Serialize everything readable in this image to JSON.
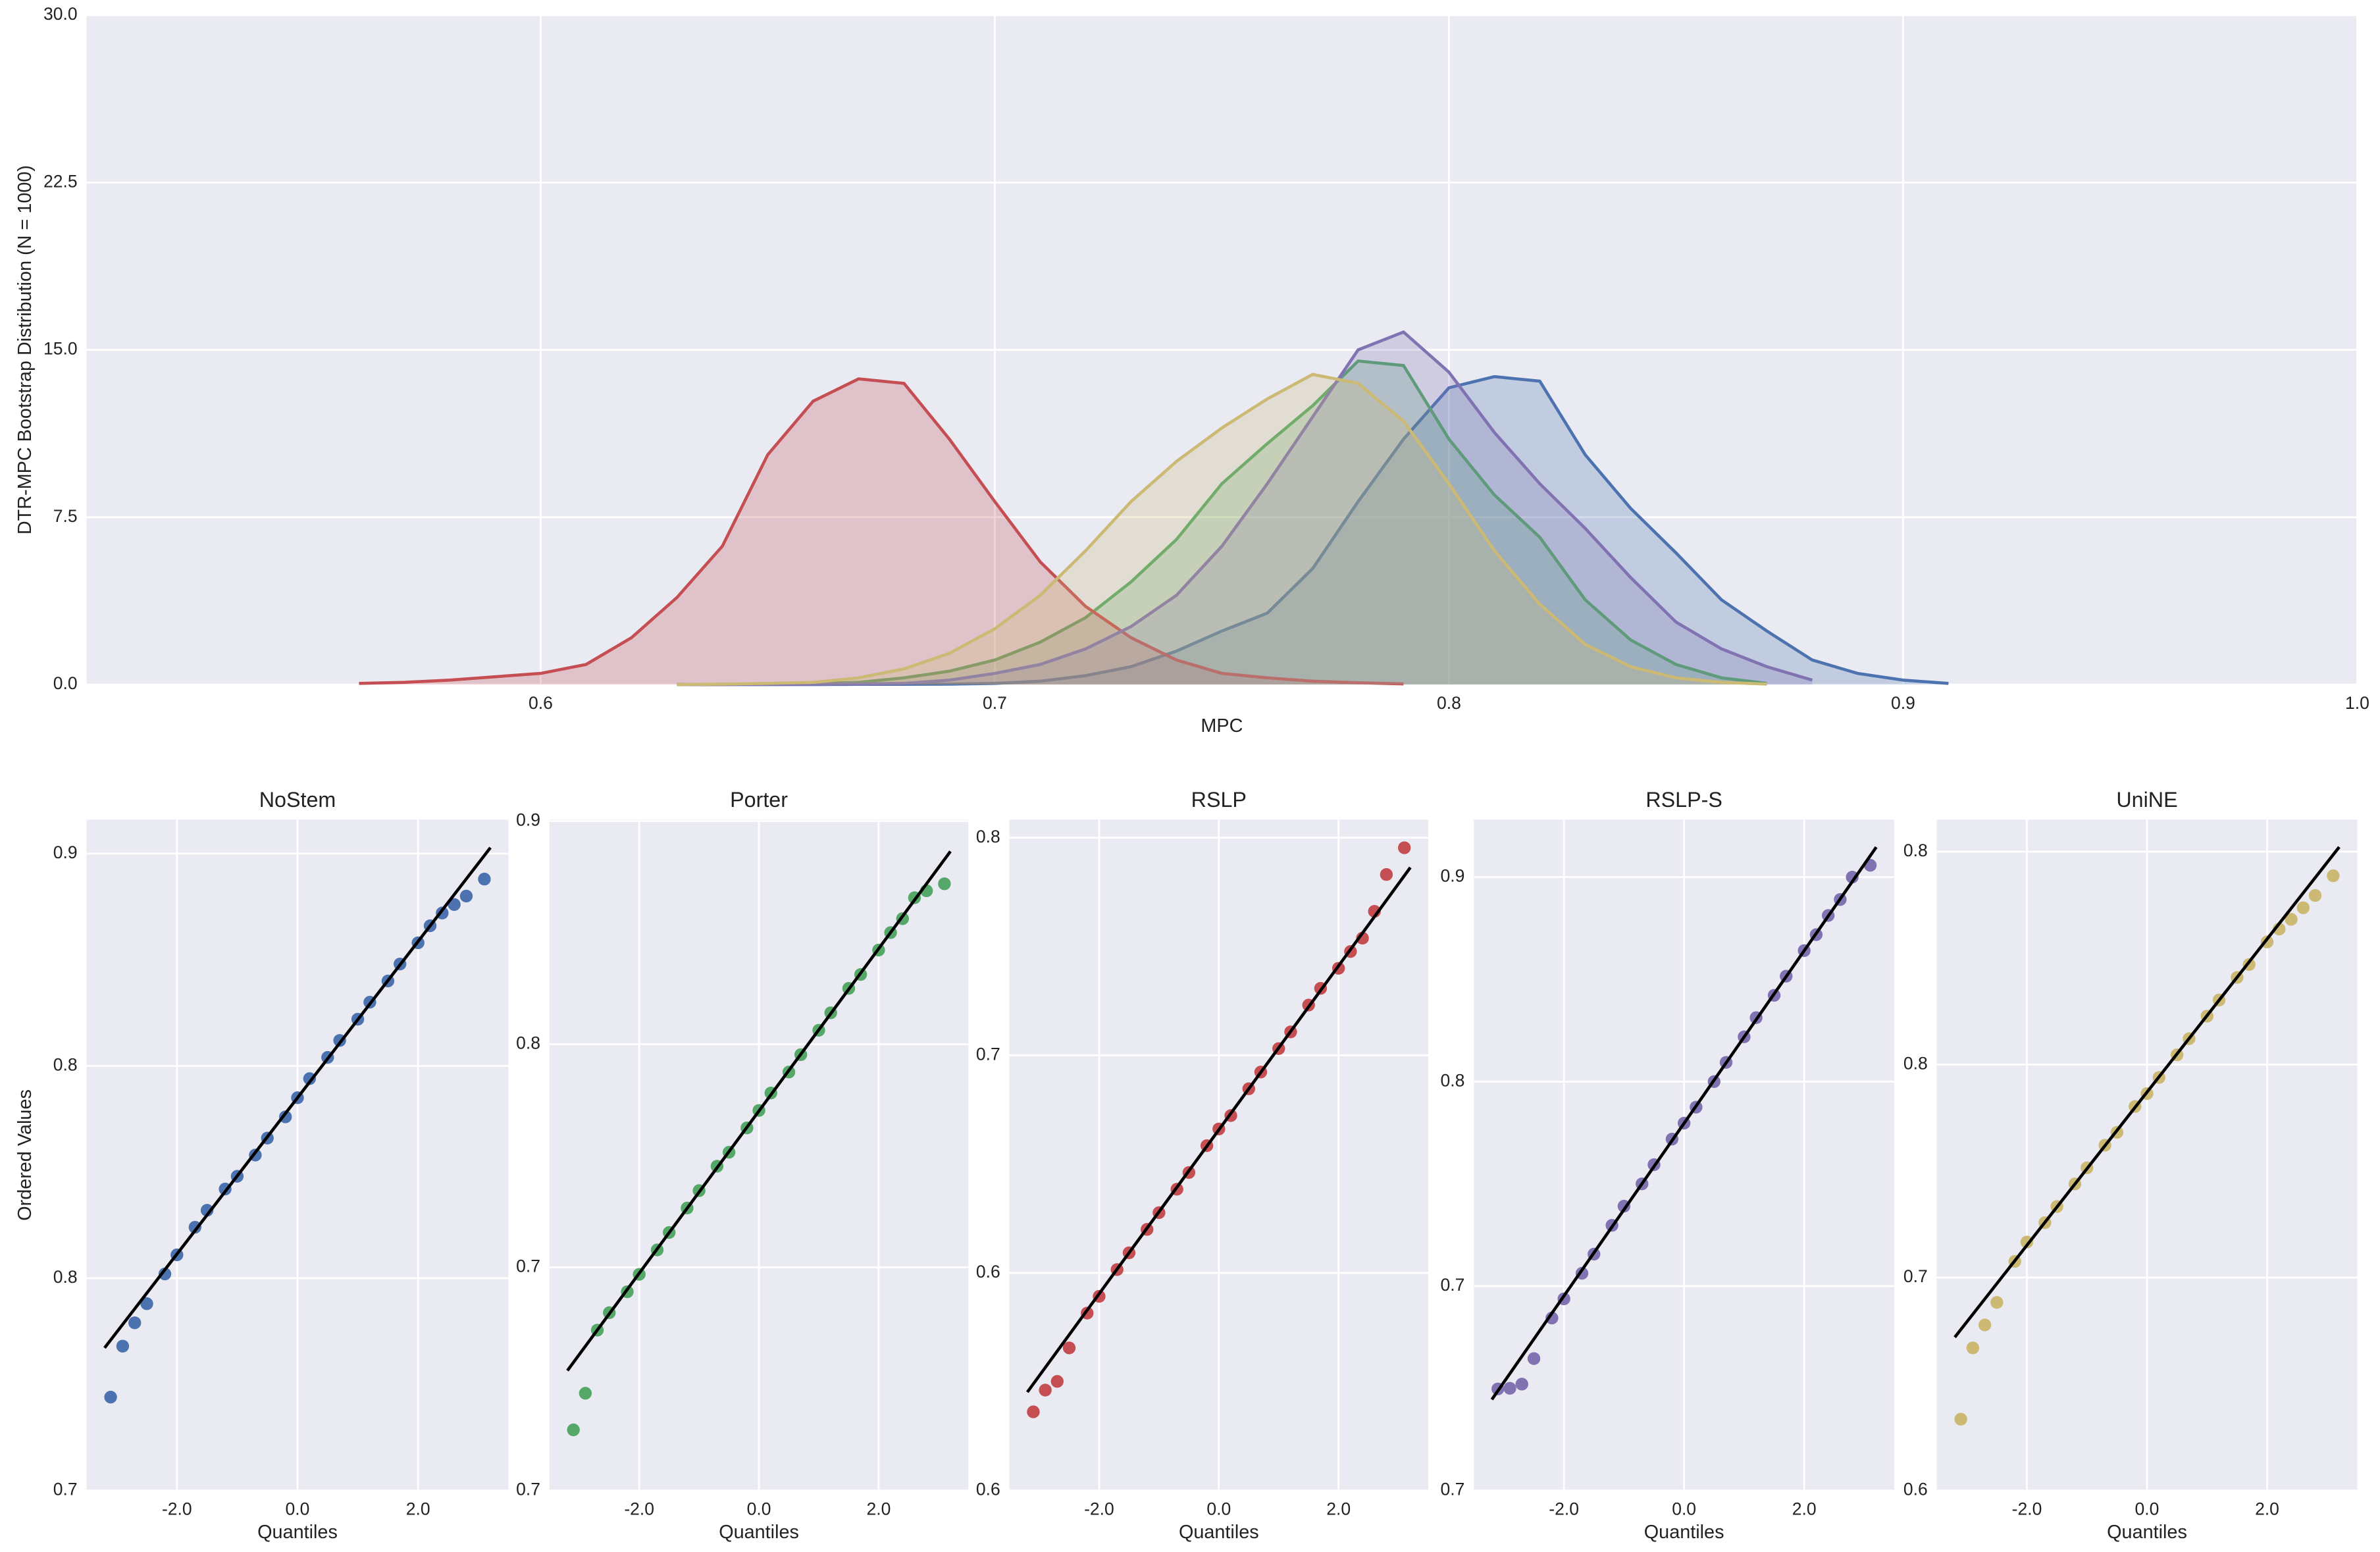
{
  "chart_data": [
    {
      "type": "area",
      "ylabel": "DTR-MPC Bootstrap Distribution (N = 1000)",
      "xlabel": "MPC",
      "x": [
        0.56,
        0.57,
        0.58,
        0.59,
        0.6,
        0.61,
        0.62,
        0.63,
        0.64,
        0.65,
        0.66,
        0.67,
        0.68,
        0.69,
        0.7,
        0.71,
        0.72,
        0.73,
        0.74,
        0.75,
        0.76,
        0.77,
        0.78,
        0.79,
        0.8,
        0.81,
        0.82,
        0.83,
        0.84,
        0.85,
        0.86,
        0.87,
        0.88,
        0.89,
        0.9,
        0.91
      ],
      "xlim": [
        0.5,
        1
      ],
      "xticks": [
        0.6,
        0.7,
        0.8,
        0.9,
        {
          "value": 1,
          "label": "1.0"
        }
      ],
      "ylim": [
        0,
        30
      ],
      "yticks": [
        {
          "value": 0,
          "label": "0.0"
        },
        7.5,
        {
          "value": 15,
          "label": "15.0"
        },
        22.5,
        {
          "value": 30,
          "label": "30.0"
        }
      ],
      "grid": true,
      "series": [
        {
          "color": "#4c72b0",
          "values": [
            null,
            null,
            null,
            null,
            null,
            null,
            null,
            0,
            0,
            0,
            0,
            0.01,
            0.01,
            0.02,
            0.05,
            0.15,
            0.4,
            0.8,
            1.5,
            2.4,
            3.2,
            5.2,
            8.2,
            11,
            13.3,
            13.8,
            13.6,
            10.3,
            7.9,
            5.9,
            3.8,
            2.4,
            1.1,
            0.5,
            0.2,
            0.05
          ]
        },
        {
          "color": "#55a868",
          "values": [
            null,
            null,
            null,
            null,
            null,
            null,
            null,
            0,
            0.01,
            0.02,
            0.05,
            0.1,
            0.3,
            0.6,
            1.1,
            1.9,
            3,
            4.6,
            6.5,
            9,
            10.8,
            12.5,
            14.5,
            14.3,
            11,
            8.5,
            6.6,
            3.8,
            2,
            0.9,
            0.3,
            0.05,
            null,
            null,
            null,
            null
          ]
        },
        {
          "color": "#c44e52",
          "values": [
            0.05,
            0.1,
            0.2,
            0.35,
            0.5,
            0.9,
            2.1,
            3.9,
            6.2,
            10.3,
            12.7,
            13.7,
            13.5,
            11,
            8.2,
            5.5,
            3.5,
            2.1,
            1.1,
            0.5,
            0.3,
            0.15,
            0.08,
            0.03,
            null,
            null,
            null,
            null,
            null,
            null,
            null,
            null,
            null,
            null,
            null,
            null
          ]
        },
        {
          "color": "#8172b2",
          "values": [
            null,
            null,
            null,
            null,
            null,
            null,
            null,
            0,
            0,
            0.01,
            0.02,
            0.03,
            0.05,
            0.2,
            0.5,
            0.9,
            1.6,
            2.6,
            4,
            6.2,
            9,
            12,
            15,
            15.8,
            14,
            11.3,
            9,
            7,
            4.8,
            2.8,
            1.6,
            0.8,
            0.2,
            null,
            null,
            null
          ]
        },
        {
          "color": "#ccb974",
          "values": [
            null,
            null,
            null,
            null,
            null,
            null,
            null,
            0,
            0.02,
            0.05,
            0.1,
            0.3,
            0.7,
            1.4,
            2.5,
            4,
            6,
            8.2,
            10,
            11.5,
            12.8,
            13.9,
            13.5,
            11.8,
            9,
            6,
            3.6,
            1.8,
            0.8,
            0.3,
            0.1,
            0.02,
            null,
            null,
            null,
            null
          ]
        }
      ]
    },
    {
      "type": "scatter",
      "title": "NoStem",
      "xlabel": "Quantiles",
      "ylabel": "Ordered Values",
      "color": "#4c72b0",
      "grid": true,
      "xlim": [
        -3.5,
        3.5
      ],
      "xticks": [
        {
          "value": -2,
          "label": "-2.0"
        },
        {
          "value": 0,
          "label": "0.0"
        },
        {
          "value": 2,
          "label": "2.0"
        }
      ],
      "ylim": [
        0.7,
        0.858
      ],
      "yticks": [
        0.7,
        {
          "value": 0.75,
          "label": "0.8"
        },
        0.8,
        {
          "value": 0.85,
          "label": "0.9"
        }
      ],
      "x": [
        -3.1,
        -2.9,
        -2.7,
        -2.5,
        -2.2,
        -2,
        -1.7,
        -1.5,
        -1.2,
        -1,
        -0.7,
        -0.5,
        -0.2,
        0,
        0.2,
        0.5,
        0.7,
        1,
        1.2,
        1.5,
        1.7,
        2,
        2.2,
        2.4,
        2.6,
        2.8,
        3.1
      ],
      "values": [
        0.722,
        0.734,
        0.7395,
        0.744,
        0.751,
        0.7555,
        0.762,
        0.766,
        0.771,
        0.774,
        0.779,
        0.783,
        0.788,
        0.7925,
        0.797,
        0.802,
        0.806,
        0.811,
        0.815,
        0.82,
        0.824,
        0.829,
        0.833,
        0.836,
        0.838,
        0.84,
        0.844
      ],
      "fit": {
        "x": [
          -3.2,
          3.2
        ],
        "values": [
          0.7336,
          0.8514
        ]
      }
    },
    {
      "type": "scatter",
      "title": "Porter",
      "xlabel": "Quantiles",
      "color": "#55a868",
      "grid": true,
      "xlim": [
        -3.5,
        3.5
      ],
      "xticks": [
        {
          "value": -2,
          "label": "-2.0"
        },
        {
          "value": 0,
          "label": "0.0"
        },
        {
          "value": 2,
          "label": "2.0"
        }
      ],
      "ylim": [
        0.66,
        0.8524
      ],
      "yticks": [
        {
          "value": 0.66,
          "label": "0.7"
        },
        {
          "value": 0.724,
          "label": "0.7"
        },
        {
          "value": 0.788,
          "label": "0.8"
        },
        {
          "value": 0.852,
          "label": "0.9"
        }
      ],
      "x": [
        -3.1,
        -2.9,
        -2.7,
        -2.5,
        -2.2,
        -2,
        -1.7,
        -1.5,
        -1.2,
        -1,
        -0.7,
        -0.5,
        -0.2,
        0,
        0.2,
        0.5,
        0.7,
        1,
        1.2,
        1.5,
        1.7,
        2,
        2.2,
        2.4,
        2.6,
        2.8,
        3.1
      ],
      "values": [
        0.6774,
        0.6879,
        0.706,
        0.711,
        0.717,
        0.722,
        0.729,
        0.734,
        0.741,
        0.746,
        0.753,
        0.757,
        0.764,
        0.769,
        0.774,
        0.78,
        0.785,
        0.792,
        0.797,
        0.804,
        0.808,
        0.815,
        0.82,
        0.824,
        0.83,
        0.832,
        0.834
      ],
      "fit": {
        "x": [
          -3.2,
          3.2
        ],
        "values": [
          0.6944,
          0.8433
        ]
      }
    },
    {
      "type": "scatter",
      "title": "RSLP",
      "xlabel": "Quantiles",
      "color": "#c44e52",
      "grid": true,
      "xlim": [
        -3.5,
        3.5
      ],
      "xticks": [
        {
          "value": -2,
          "label": "-2.0"
        },
        {
          "value": 0,
          "label": "0.0"
        },
        {
          "value": 2,
          "label": "2.0"
        }
      ],
      "ylim": [
        0.58,
        0.7804
      ],
      "yticks": [
        {
          "value": 0.58,
          "label": "0.6"
        },
        {
          "value": 0.645,
          "label": "0.6"
        },
        {
          "value": 0.71,
          "label": "0.7"
        },
        {
          "value": 0.775,
          "label": "0.8"
        }
      ],
      "x": [
        -3.1,
        -2.9,
        -2.7,
        -2.5,
        -2.2,
        -2,
        -1.7,
        -1.5,
        -1.2,
        -1,
        -0.7,
        -0.5,
        -0.2,
        0,
        0.2,
        0.5,
        0.7,
        1,
        1.2,
        1.5,
        1.7,
        2,
        2.2,
        2.4,
        2.6,
        2.8,
        3.1
      ],
      "values": [
        0.6035,
        0.61,
        0.6126,
        0.6226,
        0.633,
        0.638,
        0.646,
        0.651,
        0.658,
        0.663,
        0.67,
        0.675,
        0.683,
        0.688,
        0.692,
        0.7,
        0.705,
        0.712,
        0.717,
        0.725,
        0.73,
        0.736,
        0.741,
        0.745,
        0.753,
        0.764,
        0.772
      ],
      "fit": {
        "x": [
          -3.2,
          3.2
        ],
        "values": [
          0.6094,
          0.7661
        ]
      }
    },
    {
      "type": "scatter",
      "title": "RSLP-S",
      "xlabel": "Quantiles",
      "color": "#8172b2",
      "grid": true,
      "xlim": [
        -3.5,
        3.5
      ],
      "xticks": [
        {
          "value": -2,
          "label": "-2.0"
        },
        {
          "value": 0,
          "label": "0.0"
        },
        {
          "value": 2,
          "label": "2.0"
        }
      ],
      "ylim": [
        0.66,
        0.87
      ],
      "yticks": [
        {
          "value": 0.66,
          "label": "0.7"
        },
        {
          "value": 0.724,
          "label": "0.7"
        },
        {
          "value": 0.788,
          "label": "0.8"
        },
        {
          "value": 0.852,
          "label": "0.9"
        }
      ],
      "x": [
        -3.1,
        -2.9,
        -2.7,
        -2.5,
        -2.2,
        -2,
        -1.7,
        -1.5,
        -1.2,
        -1,
        -0.7,
        -0.5,
        -0.2,
        0,
        0.2,
        0.5,
        0.7,
        1,
        1.2,
        1.5,
        1.7,
        2,
        2.2,
        2.4,
        2.6,
        2.8,
        3.1
      ],
      "values": [
        0.6918,
        0.692,
        0.6933,
        0.7013,
        0.714,
        0.72,
        0.728,
        0.734,
        0.743,
        0.749,
        0.756,
        0.762,
        0.77,
        0.775,
        0.78,
        0.788,
        0.794,
        0.802,
        0.808,
        0.815,
        0.821,
        0.829,
        0.834,
        0.84,
        0.845,
        0.852,
        0.8557
      ],
      "fit": {
        "x": [
          -3.2,
          3.2
        ],
        "values": [
          0.6885,
          0.8614
        ]
      }
    },
    {
      "type": "scatter",
      "title": "UniNE",
      "xlabel": "Quantiles",
      "color": "#ccb974",
      "grid": true,
      "xlim": [
        -3.5,
        3.5
      ],
      "xticks": [
        {
          "value": -2,
          "label": "-2.0"
        },
        {
          "value": 0,
          "label": "0.0"
        },
        {
          "value": 2,
          "label": "2.0"
        }
      ],
      "ylim": [
        0.62,
        0.8279
      ],
      "yticks": [
        {
          "value": 0.62,
          "label": "0.6"
        },
        {
          "value": 0.686,
          "label": "0.7"
        },
        {
          "value": 0.752,
          "label": "0.8"
        },
        {
          "value": 0.818,
          "label": "0.8"
        }
      ],
      "x": [
        -3.1,
        -2.9,
        -2.7,
        -2.5,
        -2.2,
        -2,
        -1.7,
        -1.5,
        -1.2,
        -1,
        -0.7,
        -0.5,
        -0.2,
        0,
        0.2,
        0.5,
        0.7,
        1,
        1.2,
        1.5,
        1.7,
        2,
        2.2,
        2.4,
        2.6,
        2.8,
        3.1
      ],
      "values": [
        0.6421,
        0.6642,
        0.6713,
        0.6783,
        0.691,
        0.697,
        0.703,
        0.708,
        0.715,
        0.72,
        0.727,
        0.731,
        0.739,
        0.743,
        0.748,
        0.755,
        0.76,
        0.767,
        0.772,
        0.779,
        0.783,
        0.79,
        0.794,
        0.797,
        0.8006,
        0.8044,
        0.8105
      ],
      "fit": {
        "x": [
          -3.2,
          3.2
        ],
        "values": [
          0.6675,
          0.8194
        ]
      }
    }
  ]
}
